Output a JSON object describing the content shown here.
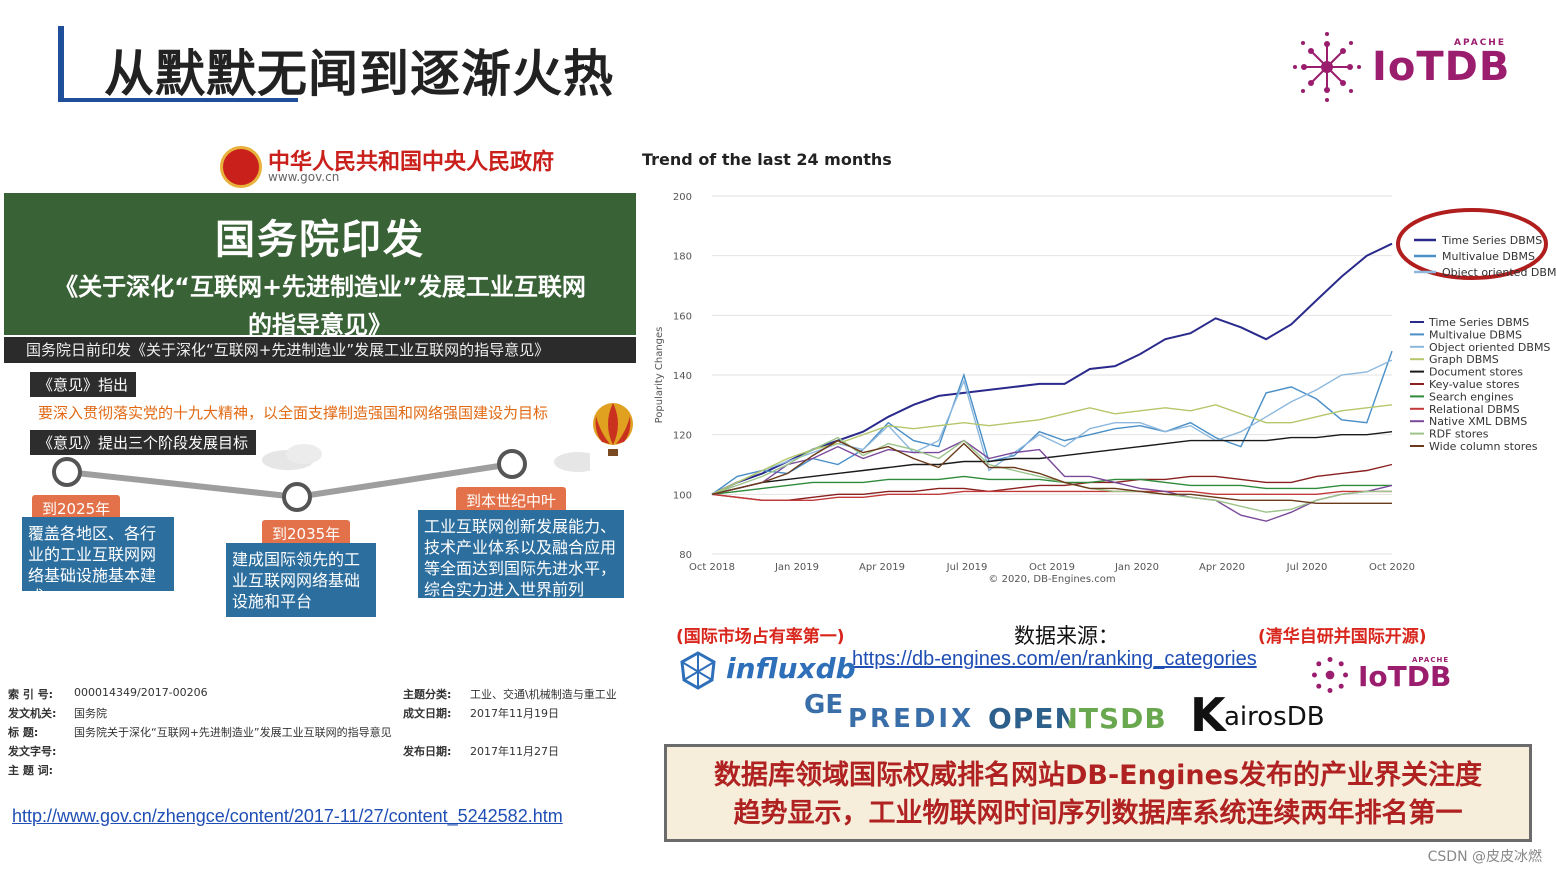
{
  "slide": {
    "title": "从默默无闻到逐渐火热",
    "logo_top": {
      "apache": "APACHE",
      "name": "IoTDB"
    }
  },
  "left_panel": {
    "gov_name": "中华人民共和国中央人民政府",
    "gov_url": "www.gov.cn",
    "headline": "国务院印发",
    "subheadline_1": "《关于深化“互联网+先进制造业”发展工业互联网",
    "subheadline_2": "的指导意见》",
    "strip_text": "国务院日前印发《关于深化“互联网+先进制造业”发展工业互联网的指导意见》",
    "tag1": "《意见》指出",
    "orange_line": "要深入贯彻落实党的十九大精神，以全面支撑制造强国和网络强国建设为目标",
    "tag2": "《意见》提出三个阶段发展目标",
    "stages": [
      {
        "year": "到2025年",
        "text": "覆盖各地区、各行业的工业互联网网络基础设施基本建成"
      },
      {
        "year": "到2035年",
        "text": "建成国际领先的工业互联网网络基础设施和平台"
      },
      {
        "year": "到本世纪中叶",
        "text": "工业互联网创新发展能力、技术产业体系以及融合应用等全面达到国际先进水平，综合实力进入世界前列"
      }
    ],
    "meta": {
      "index_label": "索 引 号:",
      "index_value": "000014349/2017-00206",
      "topic_label": "主题分类:",
      "topic_value": "工业、交通\\机械制造与重工业",
      "issuer_label": "发文机关:",
      "issuer_value": "国务院",
      "date_label": "成文日期:",
      "date_value": "2017年11月19日",
      "title_label": "标    题:",
      "title_value": "国务院关于深化“互联网+先进制造业”发展工业互联网的指导意见",
      "docno_label": "发文字号:",
      "pubdate_label": "发布日期:",
      "pubdate_value": "2017年11月27日",
      "keywords_label": "主 题 词:"
    },
    "source_link": "http://www.gov.cn/zhengce/content/2017-11/27/content_5242582.htm"
  },
  "chart_data": {
    "type": "line",
    "title": "Trend of the last 24 months",
    "ylabel": "Popularity Changes",
    "copyright": "© 2020, DB-Engines.com",
    "ylim": [
      80,
      200
    ],
    "yticks": [
      80,
      100,
      120,
      140,
      160,
      180,
      200
    ],
    "xtick_labels": [
      "Oct 2018",
      "Jan 2019",
      "Apr 2019",
      "Jul 2019",
      "Oct 2019",
      "Jan 2020",
      "Apr 2020",
      "Jul 2020",
      "Oct 2020"
    ],
    "series": [
      {
        "name": "Time Series DBMS",
        "color": "#2a2a8c",
        "values": [
          100,
          104,
          107,
          111,
          115,
          118,
          121,
          126,
          130,
          133,
          134,
          135,
          136,
          137,
          137,
          142,
          143,
          147,
          152,
          154,
          159,
          156,
          152,
          157,
          165,
          173,
          180,
          184
        ]
      },
      {
        "name": "Multivalue DBMS",
        "color": "#4a8fc7",
        "values": [
          100,
          106,
          108,
          107,
          112,
          110,
          115,
          124,
          118,
          116,
          140,
          111,
          113,
          121,
          118,
          120,
          122,
          123,
          121,
          124,
          119,
          116,
          134,
          136,
          132,
          125,
          124,
          148
        ]
      },
      {
        "name": "Object oriented DBMS",
        "color": "#8db8de",
        "values": [
          100,
          104,
          108,
          111,
          114,
          117,
          115,
          123,
          114,
          118,
          138,
          108,
          114,
          120,
          116,
          122,
          124,
          124,
          121,
          123,
          118,
          121,
          126,
          131,
          135,
          140,
          141,
          145
        ]
      },
      {
        "name": "Graph DBMS",
        "color": "#b4c76a",
        "values": [
          100,
          104,
          108,
          112,
          115,
          117,
          120,
          123,
          122,
          123,
          124,
          123,
          124,
          125,
          127,
          129,
          127,
          128,
          129,
          128,
          130,
          127,
          124,
          124,
          126,
          128,
          129,
          130
        ]
      },
      {
        "name": "Document stores",
        "color": "#1a1a1a",
        "values": [
          100,
          102,
          104,
          105,
          106,
          107,
          108,
          109,
          110,
          110,
          111,
          111,
          112,
          112,
          113,
          114,
          115,
          116,
          117,
          118,
          118,
          118,
          118,
          119,
          119,
          120,
          120,
          121
        ]
      },
      {
        "name": "Key-value stores",
        "color": "#8a2020",
        "values": [
          100,
          99,
          98,
          98,
          99,
          100,
          100,
          101,
          101,
          102,
          102,
          101,
          102,
          103,
          103,
          104,
          104,
          105,
          105,
          106,
          106,
          105,
          104,
          104,
          106,
          107,
          108,
          110
        ]
      },
      {
        "name": "Search engines",
        "color": "#2e8b3a",
        "values": [
          100,
          101,
          102,
          103,
          104,
          104,
          104,
          105,
          105,
          105,
          106,
          105,
          105,
          105,
          104,
          104,
          105,
          105,
          104,
          103,
          103,
          103,
          102,
          102,
          102,
          103,
          103,
          103
        ]
      },
      {
        "name": "Relational DBMS",
        "color": "#c23a3a",
        "values": [
          100,
          99,
          98,
          98,
          98,
          99,
          99,
          100,
          100,
          100,
          101,
          101,
          101,
          101,
          101,
          101,
          101,
          101,
          101,
          101,
          100,
          100,
          100,
          100,
          100,
          101,
          101,
          101
        ]
      },
      {
        "name": "Native XML DBMS",
        "color": "#7a4a9a",
        "values": [
          100,
          102,
          104,
          110,
          112,
          116,
          112,
          115,
          114,
          114,
          118,
          112,
          114,
          115,
          106,
          106,
          104,
          102,
          101,
          99,
          98,
          93,
          91,
          94,
          98,
          100,
          101,
          103
        ]
      },
      {
        "name": "RDF stores",
        "color": "#9cc48a",
        "values": [
          100,
          103,
          106,
          110,
          115,
          119,
          113,
          117,
          115,
          112,
          118,
          110,
          108,
          106,
          104,
          102,
          101,
          101,
          100,
          99,
          98,
          96,
          94,
          95,
          98,
          100,
          101,
          101
        ]
      },
      {
        "name": "Wide column stores",
        "color": "#6b3a1a",
        "values": [
          100,
          102,
          104,
          107,
          113,
          118,
          114,
          116,
          112,
          109,
          117,
          109,
          109,
          107,
          104,
          102,
          102,
          101,
          100,
          100,
          99,
          98,
          98,
          98,
          97,
          97,
          97,
          97
        ]
      }
    ],
    "legend": "right",
    "zoom_legend": [
      "Time Series DBMS",
      "Multivalue DBMS",
      "Object oriented DBMS"
    ]
  },
  "sources": {
    "note_left": "(国际市场占有率第一)",
    "source_label": "数据来源：",
    "note_right": "(清华自研并国际开源)",
    "url": "https://db-engines.com/en/ranking_categories",
    "logos": {
      "influx": "influxdb",
      "ge": "GE",
      "predix": "PREDIX",
      "opentsdb": "OPENTSDB",
      "kairos_k": "K",
      "kairos": "airosDB",
      "iotdb_apache": "APACHE",
      "iotdb": "IoTDB"
    }
  },
  "summary": {
    "line1": "数据库领域国际权威排名网站DB-Engines发布的产业界关注度",
    "line2": "趋势显示，工业物联网时间序列数据库系统连续两年排名第一"
  },
  "watermark": "CSDN @皮皮冰燃"
}
